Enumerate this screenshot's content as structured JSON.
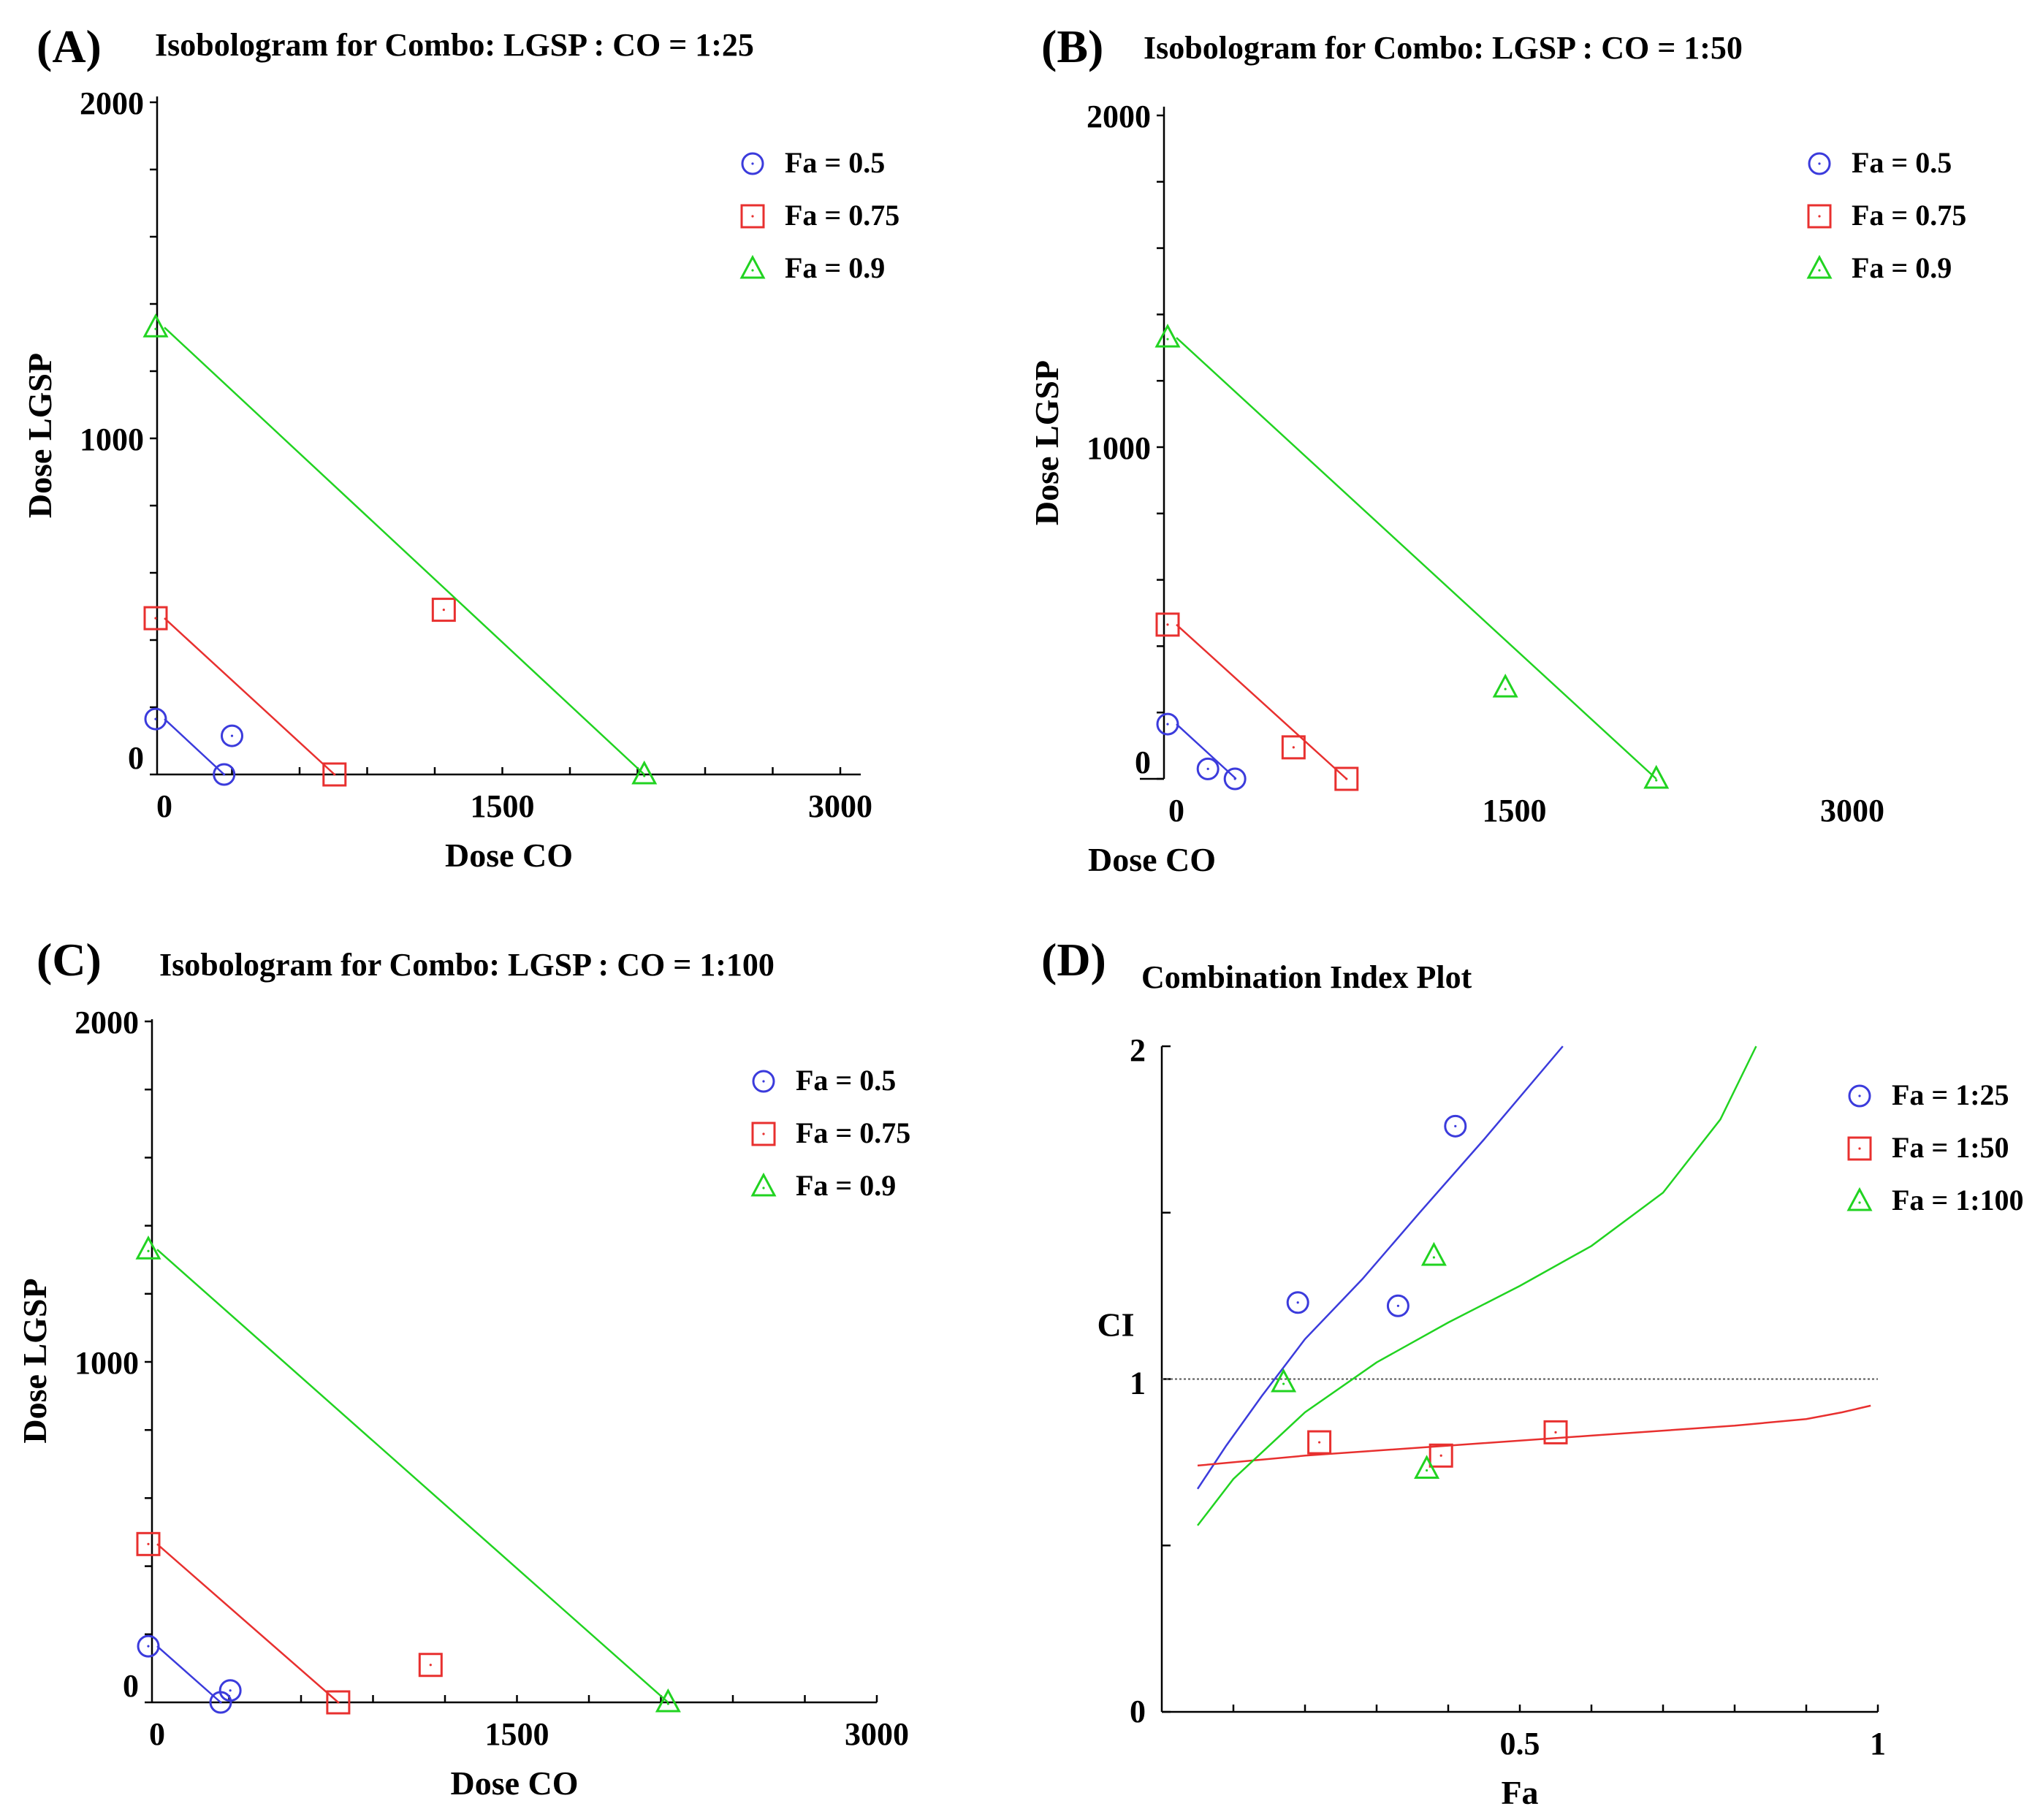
{
  "colors": {
    "fa_0_5": "#3b3bdc",
    "fa_0_75": "#e8302f",
    "fa_0_9": "#21d321",
    "ref": "#555555"
  },
  "chart_data": [
    {
      "id": "A",
      "letter": "(A)",
      "type": "scatter",
      "title": "Isobologram for Combo: LGSP : CO = 1:25",
      "xlabel": "Dose CO",
      "ylabel": "Dose LGSP",
      "xlim": [
        0,
        3000
      ],
      "ylim": [
        0,
        2000
      ],
      "xticks": [
        "0",
        "1500",
        "3000"
      ],
      "yticks": [
        "0",
        "1000",
        "2000"
      ],
      "legend": [
        "Fa = 0.5",
        "Fa = 0.75",
        "Fa = 0.9"
      ],
      "legend_position": "top-right",
      "series": [
        {
          "name": "Fa = 0.5",
          "marker": "circle",
          "line": [
            [
              0,
              165
            ],
            [
              265,
              0
            ]
          ],
          "points": [
            [
              0,
              165
            ],
            [
              265,
              0
            ],
            [
              300,
              115
            ]
          ]
        },
        {
          "name": "Fa = 0.75",
          "marker": "square",
          "line": [
            [
              0,
              465
            ],
            [
              755,
              0
            ]
          ],
          "points": [
            [
              0,
              465
            ],
            [
              755,
              0
            ],
            [
              1240,
              490
            ]
          ]
        },
        {
          "name": "Fa = 0.9",
          "marker": "triangle",
          "line": [
            [
              0,
              1330
            ],
            [
              2130,
              0
            ]
          ],
          "points": [
            [
              0,
              1330
            ],
            [
              2130,
              0
            ]
          ]
        }
      ]
    },
    {
      "id": "B",
      "letter": "(B)",
      "type": "scatter",
      "title": "Isobologram for Combo: LGSP : CO = 1:50",
      "xlabel": "Dose CO",
      "ylabel": "Dose LGSP",
      "xlim": [
        0,
        3000
      ],
      "ylim": [
        0,
        2000
      ],
      "xticks": [
        "0",
        "1500",
        "3000"
      ],
      "yticks": [
        "0",
        "1000",
        "2000"
      ],
      "legend": [
        "Fa = 0.5",
        "Fa = 0.75",
        "Fa = 0.9"
      ],
      "legend_position": "top-right",
      "series": [
        {
          "name": "Fa = 0.5",
          "marker": "circle",
          "line": [
            [
              0,
              165
            ],
            [
              265,
              0
            ]
          ],
          "points": [
            [
              0,
              165
            ],
            [
              140,
              30
            ],
            [
              260,
              0
            ]
          ]
        },
        {
          "name": "Fa = 0.75",
          "marker": "square",
          "line": [
            [
              0,
              465
            ],
            [
              755,
              0
            ]
          ],
          "points": [
            [
              0,
              465
            ],
            [
              755,
              0
            ],
            [
              520,
              95
            ]
          ]
        },
        {
          "name": "Fa = 0.9",
          "marker": "triangle",
          "line": [
            [
              0,
              1330
            ],
            [
              2130,
              0
            ]
          ],
          "points": [
            [
              0,
              1330
            ],
            [
              2130,
              0
            ],
            [
              1460,
              275
            ]
          ]
        }
      ]
    },
    {
      "id": "C",
      "letter": "(C)",
      "type": "scatter",
      "title": "Isobologram for Combo: LGSP : CO = 1:100",
      "xlabel": "Dose CO",
      "ylabel": "Dose LGSP",
      "xlim": [
        0,
        3000
      ],
      "ylim": [
        0,
        2000
      ],
      "xticks": [
        "0",
        "1500",
        "3000"
      ],
      "yticks": [
        "0",
        "1000",
        "2000"
      ],
      "legend": [
        "Fa = 0.5",
        "Fa = 0.75",
        "Fa = 0.9"
      ],
      "legend_position": "top-right",
      "series": [
        {
          "name": "Fa = 0.5",
          "marker": "circle",
          "line": [
            [
              0,
              165
            ],
            [
              265,
              0
            ]
          ],
          "points": [
            [
              0,
              165
            ],
            [
              265,
              0
            ],
            [
              305,
              35
            ]
          ]
        },
        {
          "name": "Fa = 0.75",
          "marker": "square",
          "line": [
            [
              0,
              465
            ],
            [
              755,
              0
            ]
          ],
          "points": [
            [
              0,
              465
            ],
            [
              755,
              0
            ],
            [
              1140,
              110
            ]
          ]
        },
        {
          "name": "Fa = 0.9",
          "marker": "triangle",
          "line": [
            [
              0,
              1330
            ],
            [
              2130,
              0
            ]
          ],
          "points": [
            [
              0,
              1330
            ],
            [
              2130,
              0
            ]
          ]
        }
      ]
    },
    {
      "id": "D",
      "letter": "(D)",
      "type": "line",
      "title": "Combination Index Plot",
      "xlabel": "Fa",
      "ylabel": "CI",
      "xlim": [
        0,
        1
      ],
      "ylim": [
        0,
        2
      ],
      "xticks": [
        "0.5",
        "1"
      ],
      "yticks": [
        "0",
        "1",
        "2"
      ],
      "reference_line": 1,
      "legend": [
        "Fa = 1:25",
        "Fa = 1:50",
        "Fa = 1:100"
      ],
      "legend_position": "top-right",
      "series": [
        {
          "name": "Fa = 1:25",
          "marker": "circle",
          "curve": [
            [
              0.05,
              0.67
            ],
            [
              0.09,
              0.8
            ],
            [
              0.14,
              0.95
            ],
            [
              0.2,
              1.12
            ],
            [
              0.28,
              1.3
            ],
            [
              0.36,
              1.5
            ],
            [
              0.45,
              1.72
            ],
            [
              0.56,
              2.0
            ]
          ],
          "points": [
            [
              0.19,
              1.23
            ],
            [
              0.33,
              1.22
            ],
            [
              0.41,
              1.76
            ]
          ]
        },
        {
          "name": "Fa = 1:50",
          "marker": "square",
          "curve": [
            [
              0.05,
              0.74
            ],
            [
              0.2,
              0.77
            ],
            [
              0.4,
              0.8
            ],
            [
              0.6,
              0.83
            ],
            [
              0.8,
              0.86
            ],
            [
              0.9,
              0.88
            ],
            [
              0.95,
              0.9
            ],
            [
              0.99,
              0.92
            ]
          ],
          "points": [
            [
              0.22,
              0.81
            ],
            [
              0.39,
              0.77
            ],
            [
              0.55,
              0.84
            ]
          ]
        },
        {
          "name": "Fa = 1:100",
          "marker": "triangle",
          "curve": [
            [
              0.05,
              0.56
            ],
            [
              0.1,
              0.7
            ],
            [
              0.2,
              0.9
            ],
            [
              0.3,
              1.05
            ],
            [
              0.4,
              1.17
            ],
            [
              0.5,
              1.28
            ],
            [
              0.6,
              1.4
            ],
            [
              0.7,
              1.56
            ],
            [
              0.78,
              1.78
            ],
            [
              0.83,
              2.0
            ]
          ],
          "points": [
            [
              0.17,
              0.99
            ],
            [
              0.37,
              0.73
            ],
            [
              0.38,
              1.37
            ]
          ]
        }
      ]
    }
  ]
}
